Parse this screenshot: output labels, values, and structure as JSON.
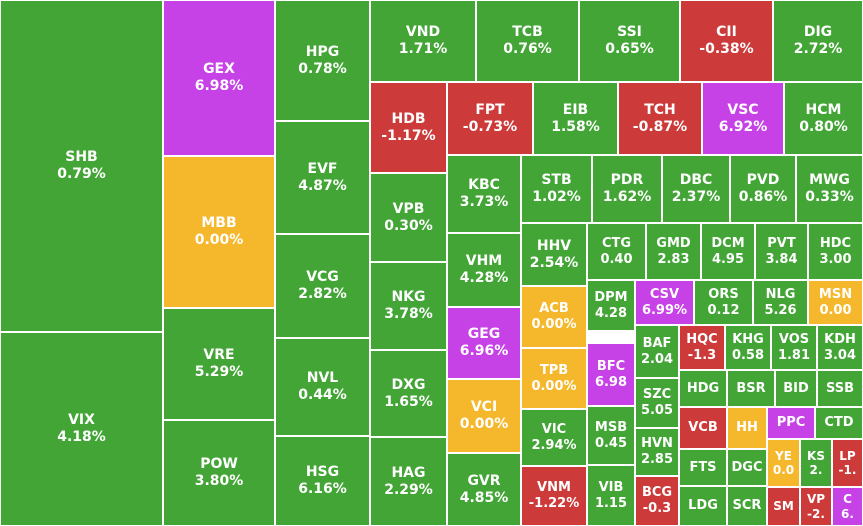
{
  "colors": {
    "up": "#43a536",
    "down": "#cc3a3a",
    "ceiling": "#c642e6",
    "reference": "#f5b82d"
  },
  "chart_data": {
    "type": "treemap",
    "tiles": [
      {
        "name": "SHB",
        "change": "0.79%",
        "status": "up"
      },
      {
        "name": "VIX",
        "change": "4.18%",
        "status": "up"
      },
      {
        "name": "GEX",
        "change": "6.98%",
        "status": "ceiling"
      },
      {
        "name": "MBB",
        "change": "0.00%",
        "status": "reference"
      },
      {
        "name": "VRE",
        "change": "5.29%",
        "status": "up"
      },
      {
        "name": "POW",
        "change": "3.80%",
        "status": "up"
      },
      {
        "name": "HPG",
        "change": "0.78%",
        "status": "up"
      },
      {
        "name": "EVF",
        "change": "4.87%",
        "status": "up"
      },
      {
        "name": "VCG",
        "change": "2.82%",
        "status": "up"
      },
      {
        "name": "NVL",
        "change": "0.44%",
        "status": "up"
      },
      {
        "name": "HSG",
        "change": "6.16%",
        "status": "up"
      },
      {
        "name": "VND",
        "change": "1.71%",
        "status": "up"
      },
      {
        "name": "TCB",
        "change": "0.76%",
        "status": "up"
      },
      {
        "name": "SSI",
        "change": "0.65%",
        "status": "up"
      },
      {
        "name": "CII",
        "change": "-0.38%",
        "status": "down"
      },
      {
        "name": "DIG",
        "change": "2.72%",
        "status": "up"
      },
      {
        "name": "HDB",
        "change": "-1.17%",
        "status": "down"
      },
      {
        "name": "FPT",
        "change": "-0.73%",
        "status": "down"
      },
      {
        "name": "EIB",
        "change": "1.58%",
        "status": "up"
      },
      {
        "name": "TCH",
        "change": "-0.87%",
        "status": "down"
      },
      {
        "name": "VSC",
        "change": "6.92%",
        "status": "ceiling"
      },
      {
        "name": "HCM",
        "change": "0.80%",
        "status": "up"
      },
      {
        "name": "VPB",
        "change": "0.30%",
        "status": "up"
      },
      {
        "name": "NKG",
        "change": "3.78%",
        "status": "up"
      },
      {
        "name": "DXG",
        "change": "1.65%",
        "status": "up"
      },
      {
        "name": "HAG",
        "change": "2.29%",
        "status": "up"
      },
      {
        "name": "KBC",
        "change": "3.73%",
        "status": "up"
      },
      {
        "name": "VHM",
        "change": "4.28%",
        "status": "up"
      },
      {
        "name": "GEG",
        "change": "6.96%",
        "status": "ceiling"
      },
      {
        "name": "VCI",
        "change": "0.00%",
        "status": "reference"
      },
      {
        "name": "GVR",
        "change": "4.85%",
        "status": "up"
      },
      {
        "name": "STB",
        "change": "1.02%",
        "status": "up"
      },
      {
        "name": "PDR",
        "change": "1.62%",
        "status": "up"
      },
      {
        "name": "DBC",
        "change": "2.37%",
        "status": "up"
      },
      {
        "name": "PVD",
        "change": "0.86%",
        "status": "up"
      },
      {
        "name": "MWG",
        "change": "0.33%",
        "status": "up"
      },
      {
        "name": "HHV",
        "change": "2.54%",
        "status": "up"
      },
      {
        "name": "CTG",
        "change": "0.40",
        "status": "up"
      },
      {
        "name": "GMD",
        "change": "2.83",
        "status": "up"
      },
      {
        "name": "DCM",
        "change": "4.95",
        "status": "up"
      },
      {
        "name": "PVT",
        "change": "3.84",
        "status": "up"
      },
      {
        "name": "HDC",
        "change": "3.00",
        "status": "up"
      },
      {
        "name": "ACB",
        "change": "0.00%",
        "status": "reference"
      },
      {
        "name": "TPB",
        "change": "0.00%",
        "status": "reference"
      },
      {
        "name": "VIC",
        "change": "2.94%",
        "status": "up"
      },
      {
        "name": "VNM",
        "change": "-1.22%",
        "status": "down"
      },
      {
        "name": "DPM",
        "change": "4.28",
        "status": "up"
      },
      {
        "name": "BFC",
        "change": "6.98",
        "status": "ceiling"
      },
      {
        "name": "MSB",
        "change": "0.45",
        "status": "up"
      },
      {
        "name": "VIB",
        "change": "1.15",
        "status": "up"
      },
      {
        "name": "CSV",
        "change": "6.99%",
        "status": "ceiling"
      },
      {
        "name": "ORS",
        "change": "0.12",
        "status": "up"
      },
      {
        "name": "NLG",
        "change": "5.26",
        "status": "up"
      },
      {
        "name": "MSN",
        "change": "0.00",
        "status": "reference"
      },
      {
        "name": "BAF",
        "change": "2.04",
        "status": "up"
      },
      {
        "name": "SZC",
        "change": "5.05",
        "status": "up"
      },
      {
        "name": "HVN",
        "change": "2.85",
        "status": "up"
      },
      {
        "name": "BCG",
        "change": "-0.3",
        "status": "down"
      },
      {
        "name": "HQC",
        "change": "-1.3",
        "status": "down"
      },
      {
        "name": "KHG",
        "change": "0.58",
        "status": "up"
      },
      {
        "name": "VOS",
        "change": "1.81",
        "status": "up"
      },
      {
        "name": "KDH",
        "change": "3.04",
        "status": "up"
      },
      {
        "name": "HDG",
        "change": "",
        "status": "up"
      },
      {
        "name": "BSR",
        "change": "",
        "status": "up"
      },
      {
        "name": "BID",
        "change": "",
        "status": "up"
      },
      {
        "name": "SSB",
        "change": "",
        "status": "up"
      },
      {
        "name": "VCB",
        "change": "",
        "status": "down"
      },
      {
        "name": "HH",
        "change": "",
        "status": "reference"
      },
      {
        "name": "PPC",
        "change": "",
        "status": "ceiling"
      },
      {
        "name": "CTD",
        "change": "",
        "status": "up"
      },
      {
        "name": "FTS",
        "change": "",
        "status": "up"
      },
      {
        "name": "DGC",
        "change": "",
        "status": "up"
      },
      {
        "name": "YE",
        "change": "0.0",
        "status": "reference"
      },
      {
        "name": "KS",
        "change": "2.",
        "status": "up"
      },
      {
        "name": "LP",
        "change": "-1.",
        "status": "down"
      },
      {
        "name": "LDG",
        "change": "",
        "status": "up"
      },
      {
        "name": "SCR",
        "change": "",
        "status": "up"
      },
      {
        "name": "SM",
        "change": "",
        "status": "down"
      },
      {
        "name": "VP",
        "change": "-2.",
        "status": "down"
      },
      {
        "name": "C",
        "change": "6.",
        "status": "ceiling"
      }
    ]
  }
}
